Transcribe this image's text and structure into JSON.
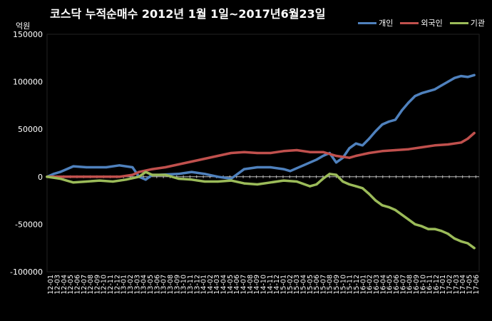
{
  "chart_data": {
    "type": "line",
    "title": "코스닥  누적순매수 2012년 1월 1일~2017년6월23일",
    "unit_label": "억원",
    "ylim": [
      -100000,
      150000
    ],
    "yticks": [
      150000,
      100000,
      50000,
      0,
      -50000,
      -100000
    ],
    "ytick_labels": [
      "150000",
      "100000",
      "50000",
      "0",
      "-50000",
      "-100000"
    ],
    "grid": false,
    "legend_position": "top-right",
    "x_tick_labels": [
      "12-01",
      "12-03",
      "12-04",
      "12-05",
      "12-06",
      "12-07",
      "12-08",
      "12-09",
      "12-10",
      "12-11",
      "12-12",
      "13-01",
      "13-02",
      "13-03",
      "13-04",
      "13-05",
      "13-06",
      "13-07",
      "13-08",
      "13-09",
      "13-10",
      "13-11",
      "13-12",
      "14-01",
      "14-02",
      "14-03",
      "14-04",
      "14-05",
      "14-06",
      "14-07",
      "14-08",
      "14-09",
      "14-10",
      "14-11",
      "14-12",
      "15-01",
      "15-02",
      "15-03",
      "15-04",
      "15-05",
      "15-06",
      "15-07",
      "15-08",
      "15-09",
      "15-10",
      "15-11",
      "15-12",
      "16-01",
      "16-02",
      "16-03",
      "16-04",
      "16-05",
      "16-06",
      "16-07",
      "16-08",
      "16-09",
      "16-10",
      "16-11",
      "16-12",
      "17-01",
      "17-02",
      "17-03",
      "17-04",
      "17-05",
      "17-06"
    ],
    "x_range": [
      "2012-01",
      "2017-06"
    ],
    "series": [
      {
        "name": "개인",
        "color": "#4f81bd",
        "x": [
          "2012-01",
          "2012-02",
          "2012-03",
          "2012-05",
          "2012-07",
          "2012-10",
          "2012-12",
          "2013-02",
          "2013-03",
          "2013-04",
          "2013-05",
          "2013-06",
          "2013-09",
          "2013-11",
          "2014-01",
          "2014-03",
          "2014-05",
          "2014-06",
          "2014-07",
          "2014-09",
          "2014-11",
          "2015-01",
          "2015-02",
          "2015-03",
          "2015-04",
          "2015-06",
          "2015-07",
          "2015-08",
          "2015-09",
          "2015-10",
          "2015-11",
          "2015-12",
          "2016-01",
          "2016-02",
          "2016-03",
          "2016-04",
          "2016-05",
          "2016-06",
          "2016-07",
          "2016-08",
          "2016-09",
          "2016-10",
          "2016-11",
          "2016-12",
          "2017-01",
          "2017-02",
          "2017-03",
          "2017-04",
          "2017-05",
          "2017-06"
        ],
        "values": [
          0,
          3000,
          5000,
          11000,
          10000,
          10000,
          12000,
          10000,
          0,
          -3000,
          2000,
          2000,
          3000,
          5000,
          3000,
          0,
          -2000,
          3000,
          8000,
          10000,
          10000,
          8000,
          6000,
          9000,
          12000,
          18000,
          22000,
          25000,
          15000,
          20000,
          30000,
          35000,
          33000,
          40000,
          48000,
          55000,
          58000,
          60000,
          70000,
          78000,
          85000,
          88000,
          90000,
          92000,
          96000,
          100000,
          104000,
          106000,
          105000,
          107000
        ]
      },
      {
        "name": "외국인",
        "color": "#c0504d",
        "x": [
          "2012-01",
          "2012-03",
          "2012-06",
          "2012-09",
          "2012-12",
          "2013-02",
          "2013-03",
          "2013-05",
          "2013-07",
          "2013-09",
          "2013-11",
          "2014-01",
          "2014-03",
          "2014-05",
          "2014-07",
          "2014-09",
          "2014-11",
          "2015-01",
          "2015-03",
          "2015-05",
          "2015-07",
          "2015-09",
          "2015-11",
          "2015-12",
          "2016-02",
          "2016-04",
          "2016-06",
          "2016-08",
          "2016-10",
          "2016-12",
          "2017-02",
          "2017-04",
          "2017-05",
          "2017-06"
        ],
        "values": [
          0,
          0,
          0,
          0,
          0,
          2000,
          5000,
          8000,
          10000,
          13000,
          16000,
          19000,
          22000,
          25000,
          26000,
          25000,
          25000,
          27000,
          28000,
          26000,
          26000,
          22000,
          20000,
          22000,
          25000,
          27000,
          28000,
          29000,
          31000,
          33000,
          34000,
          36000,
          40000,
          46000
        ]
      },
      {
        "name": "기관",
        "color": "#9bbb59",
        "x": [
          "2012-01",
          "2012-03",
          "2012-05",
          "2012-07",
          "2012-09",
          "2012-11",
          "2013-01",
          "2013-03",
          "2013-04",
          "2013-05",
          "2013-07",
          "2013-09",
          "2013-11",
          "2014-01",
          "2014-03",
          "2014-05",
          "2014-07",
          "2014-09",
          "2014-11",
          "2015-01",
          "2015-03",
          "2015-05",
          "2015-06",
          "2015-07",
          "2015-08",
          "2015-09",
          "2015-10",
          "2015-11",
          "2015-12",
          "2016-01",
          "2016-02",
          "2016-03",
          "2016-04",
          "2016-05",
          "2016-06",
          "2016-07",
          "2016-08",
          "2016-09",
          "2016-10",
          "2016-11",
          "2016-12",
          "2017-01",
          "2017-02",
          "2017-03",
          "2017-04",
          "2017-05",
          "2017-06"
        ],
        "values": [
          0,
          -2000,
          -6000,
          -5000,
          -4000,
          -5000,
          -3000,
          0,
          5000,
          2000,
          2000,
          -2000,
          -3000,
          -5000,
          -5000,
          -4000,
          -7000,
          -8000,
          -6000,
          -4000,
          -5000,
          -10000,
          -8000,
          -2000,
          3000,
          2000,
          -5000,
          -8000,
          -10000,
          -12000,
          -18000,
          -25000,
          -30000,
          -32000,
          -35000,
          -40000,
          -45000,
          -50000,
          -52000,
          -55000,
          -55000,
          -57000,
          -60000,
          -65000,
          -68000,
          -70000,
          -75000
        ]
      }
    ]
  }
}
